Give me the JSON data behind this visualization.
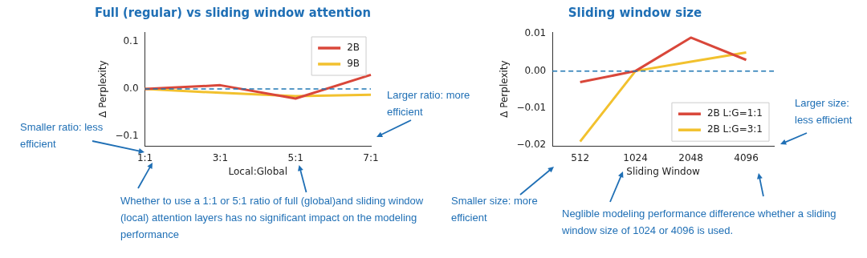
{
  "chart_data": [
    {
      "type": "line",
      "title": "Full (regular) vs sliding window attention",
      "xlabel": "Local:Global",
      "ylabel": "Δ Perplexity",
      "categories": [
        "1:1",
        "3:1",
        "5:1",
        "7:1"
      ],
      "series": [
        {
          "name": "2B",
          "color": "#d9473a",
          "values": [
            0,
            0.008,
            -0.02,
            0.03
          ]
        },
        {
          "name": "9B",
          "color": "#f2c12e",
          "values": [
            0,
            -0.008,
            -0.015,
            -0.012
          ]
        }
      ],
      "ylim": [
        -0.12,
        0.12
      ],
      "yticks": [
        {
          "value": -0.1,
          "label": "−0.1"
        },
        {
          "value": 0,
          "label": "0.0"
        },
        {
          "value": 0.1,
          "label": "0.1"
        }
      ],
      "ref_lines": [
        {
          "axis": "y",
          "value": 0,
          "color": "#1f77b4",
          "line_style": "dashed"
        }
      ],
      "legend": "top right",
      "annotations": [
        "Smaller ratio: less efficient",
        "Larger ratio: more efficient",
        "Whether to use a 1:1 or 5:1 ratio of full (global)and sliding window (local) attention layers has no significant  impact on the modeling performance"
      ]
    },
    {
      "type": "line",
      "title": "Sliding window size",
      "xlabel": "Sliding Window",
      "ylabel": "Δ Perplexity",
      "categories": [
        "512",
        "1024",
        "2048",
        "4096"
      ],
      "series": [
        {
          "name": "2B L:G=1:1",
          "color": "#d9473a",
          "values": [
            -0.003,
            0,
            0.009,
            0.003
          ]
        },
        {
          "name": "2B L:G=3:1",
          "color": "#f2c12e",
          "values": [
            -0.019,
            0,
            0.0025,
            0.005
          ]
        }
      ],
      "ylim": [
        -0.0202,
        0.0105
      ],
      "yticks": [
        {
          "value": -0.02,
          "label": "−0.02"
        },
        {
          "value": -0.01,
          "label": "−0.01"
        },
        {
          "value": 0,
          "label": "0.00"
        },
        {
          "value": 0.01,
          "label": "0.01"
        }
      ],
      "ref_lines": [
        {
          "axis": "y",
          "value": 0,
          "color": "#1f77b4",
          "line_style": "dashed"
        }
      ],
      "legend": "bottom right",
      "annotations": [
        "Larger size: less efficient",
        "Smaller size: more efficient",
        "Neglible modeling performance difference whether a sliding window size of 1024 or 4096 is used."
      ]
    }
  ]
}
